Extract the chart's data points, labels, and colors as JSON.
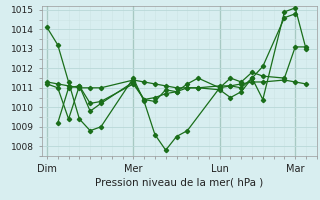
{
  "xlabel": "Pression niveau de la mer( hPa )",
  "ylim": [
    1007.5,
    1015.2
  ],
  "yticks": [
    1008,
    1009,
    1010,
    1011,
    1012,
    1013,
    1014,
    1015
  ],
  "xtick_labels": [
    "Dim",
    "Mer",
    "Lun",
    "Mar"
  ],
  "xtick_positions": [
    0,
    16,
    32,
    46
  ],
  "xlim": [
    -1,
    50
  ],
  "bg_color": "#d8eef0",
  "grid_major_color": "#b8d8d8",
  "grid_minor_color": "#cce4e4",
  "line_color": "#1a6e1a",
  "vline_color": "#336633",
  "series": [
    {
      "x": [
        0,
        2,
        4,
        6,
        8,
        10,
        16,
        18,
        20,
        22,
        24,
        26,
        32,
        34,
        36,
        38,
        40,
        44,
        46,
        48
      ],
      "y": [
        1014.1,
        1013.2,
        1011.3,
        1009.4,
        1008.8,
        1009.0,
        1011.5,
        1010.3,
        1008.6,
        1007.8,
        1008.5,
        1008.8,
        1011.0,
        1011.5,
        1011.3,
        1011.8,
        1011.6,
        1011.5,
        1013.1,
        1013.1
      ]
    },
    {
      "x": [
        0,
        2,
        4,
        6,
        8,
        10,
        16,
        18,
        20,
        22,
        24,
        26,
        28,
        32,
        34,
        36,
        38,
        40,
        44,
        46,
        48
      ],
      "y": [
        1011.3,
        1011.2,
        1011.1,
        1011.0,
        1011.0,
        1011.0,
        1011.4,
        1011.3,
        1011.2,
        1011.1,
        1011.0,
        1011.0,
        1011.0,
        1011.1,
        1011.1,
        1011.2,
        1011.3,
        1011.3,
        1011.4,
        1011.3,
        1011.2
      ]
    },
    {
      "x": [
        0,
        2,
        4,
        6,
        8,
        10,
        16,
        18,
        20,
        22,
        24,
        26,
        28,
        32,
        34,
        36,
        38,
        40,
        44,
        46
      ],
      "y": [
        1011.2,
        1011.0,
        1009.4,
        1011.1,
        1009.8,
        1010.2,
        1011.3,
        1010.4,
        1010.3,
        1010.9,
        1010.8,
        1011.0,
        1011.0,
        1010.9,
        1010.5,
        1010.8,
        1011.5,
        1012.1,
        1014.6,
        1014.8
      ]
    },
    {
      "x": [
        2,
        4,
        6,
        8,
        10,
        16,
        18,
        20,
        22,
        24,
        26,
        28,
        32,
        34,
        36,
        38,
        40,
        44,
        46,
        48
      ],
      "y": [
        1009.2,
        1011.0,
        1011.1,
        1010.2,
        1010.3,
        1011.2,
        1010.4,
        1010.5,
        1010.7,
        1010.8,
        1011.2,
        1011.5,
        1011.0,
        1011.1,
        1011.0,
        1011.5,
        1010.4,
        1014.9,
        1015.1,
        1013.0
      ]
    }
  ]
}
